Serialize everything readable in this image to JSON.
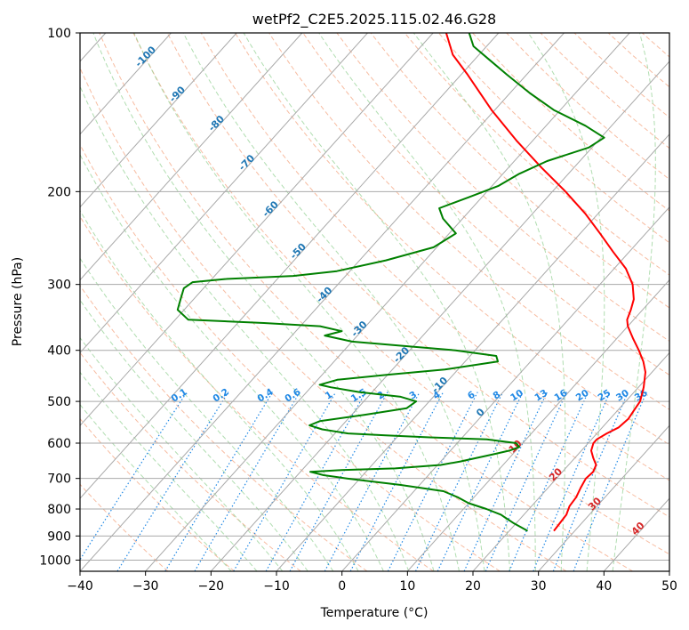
{
  "chart_data": {
    "type": "line",
    "subtype": "skew-t log-p",
    "title": "wetPf2_C2E5.2025.115.02.46.G28",
    "xlabel": "Temperature (°C)",
    "ylabel": "Pressure (hPa)",
    "xlim": [
      -40,
      50
    ],
    "ylim": [
      1050,
      100
    ],
    "y_scale": "log",
    "grid": true,
    "x_ticks": [
      "−40",
      "−30",
      "−20",
      "−10",
      "0",
      "10",
      "20",
      "30",
      "40",
      "50"
    ],
    "x_tick_values": [
      -40,
      -30,
      -20,
      -10,
      0,
      10,
      20,
      30,
      40,
      50
    ],
    "y_ticks": [
      "100",
      "200",
      "300",
      "400",
      "500",
      "600",
      "700",
      "800",
      "900",
      "1000"
    ],
    "y_tick_values": [
      100,
      200,
      300,
      400,
      500,
      600,
      700,
      800,
      900,
      1000
    ],
    "colors": {
      "temperature": "#ff0000",
      "dewpoint": "#008000",
      "dry_adiabats": "#f4a582",
      "moist_adiabats": "#8fcf8f",
      "mixing_ratio": "#1f88e5",
      "isotherm_labels_blue": "#1f77b4",
      "isotherm_labels_red": "#d62728",
      "grid": "#a9a9a9"
    },
    "isotherm_labels": [
      {
        "text": "-100",
        "temp": -100
      },
      {
        "text": "-90",
        "temp": -90
      },
      {
        "text": "-80",
        "temp": -80
      },
      {
        "text": "-70",
        "temp": -70
      },
      {
        "text": "-60",
        "temp": -60
      },
      {
        "text": "-50",
        "temp": -50
      },
      {
        "text": "-40",
        "temp": -40
      },
      {
        "text": "-30",
        "temp": -30
      },
      {
        "text": "-20",
        "temp": -20
      },
      {
        "text": "-10",
        "temp": -10
      },
      {
        "text": "0",
        "temp": 0
      },
      {
        "text": "10",
        "temp": 10
      },
      {
        "text": "20",
        "temp": 20
      },
      {
        "text": "30",
        "temp": 30
      },
      {
        "text": "40",
        "temp": 40
      }
    ],
    "mixing_ratio_labels": [
      "0.1",
      "0.2",
      "0.4",
      "0.6",
      "1",
      "1.5",
      "2",
      "3",
      "4",
      "6",
      "8",
      "10",
      "13",
      "16",
      "20",
      "25",
      "30",
      "36"
    ],
    "series": [
      {
        "role": "temperature",
        "points": [
          {
            "p": 880,
            "t": 26.8
          },
          {
            "p": 820,
            "t": 26.5
          },
          {
            "p": 790,
            "t": 25.8
          },
          {
            "p": 760,
            "t": 25.6
          },
          {
            "p": 730,
            "t": 25.0
          },
          {
            "p": 700,
            "t": 24.5
          },
          {
            "p": 680,
            "t": 24.7
          },
          {
            "p": 660,
            "t": 24.2
          },
          {
            "p": 640,
            "t": 22.8
          },
          {
            "p": 620,
            "t": 21.5
          },
          {
            "p": 600,
            "t": 20.8
          },
          {
            "p": 590,
            "t": 20.8
          },
          {
            "p": 575,
            "t": 21.5
          },
          {
            "p": 560,
            "t": 22.5
          },
          {
            "p": 540,
            "t": 22.8
          },
          {
            "p": 520,
            "t": 22.5
          },
          {
            "p": 500,
            "t": 22.2
          },
          {
            "p": 470,
            "t": 20.8
          },
          {
            "p": 440,
            "t": 19.0
          },
          {
            "p": 420,
            "t": 17.2
          },
          {
            "p": 400,
            "t": 15.0
          },
          {
            "p": 380,
            "t": 12.5
          },
          {
            "p": 360,
            "t": 10.0
          },
          {
            "p": 350,
            "t": 9.0
          },
          {
            "p": 335,
            "t": 8.2
          },
          {
            "p": 320,
            "t": 7.2
          },
          {
            "p": 300,
            "t": 5.0
          },
          {
            "p": 280,
            "t": 1.8
          },
          {
            "p": 260,
            "t": -2.5
          },
          {
            "p": 240,
            "t": -7.0
          },
          {
            "p": 220,
            "t": -12.0
          },
          {
            "p": 200,
            "t": -18.0
          },
          {
            "p": 180,
            "t": -25.0
          },
          {
            "p": 160,
            "t": -32.5
          },
          {
            "p": 140,
            "t": -40.5
          },
          {
            "p": 120,
            "t": -49.0
          },
          {
            "p": 110,
            "t": -54.0
          },
          {
            "p": 100,
            "t": -58.0
          }
        ]
      },
      {
        "role": "dewpoint",
        "points": [
          {
            "p": 880,
            "t": 22.8
          },
          {
            "p": 850,
            "t": 19.5
          },
          {
            "p": 830,
            "t": 17.5
          },
          {
            "p": 820,
            "t": 16.5
          },
          {
            "p": 800,
            "t": 13.5
          },
          {
            "p": 780,
            "t": 10.0
          },
          {
            "p": 760,
            "t": 7.5
          },
          {
            "p": 740,
            "t": 4.5
          },
          {
            "p": 720,
            "t": -3.0
          },
          {
            "p": 700,
            "t": -12.0
          },
          {
            "p": 690,
            "t": -16.0
          },
          {
            "p": 680,
            "t": -18.5
          },
          {
            "p": 675,
            "t": -14.0
          },
          {
            "p": 670,
            "t": -6.0
          },
          {
            "p": 660,
            "t": 0.5
          },
          {
            "p": 650,
            "t": 3.0
          },
          {
            "p": 640,
            "t": 5.0
          },
          {
            "p": 630,
            "t": 7.0
          },
          {
            "p": 620,
            "t": 9.0
          },
          {
            "p": 610,
            "t": 10.0
          },
          {
            "p": 600,
            "t": 9.0
          },
          {
            "p": 590,
            "t": 4.0
          },
          {
            "p": 585,
            "t": -5.0
          },
          {
            "p": 580,
            "t": -12.0
          },
          {
            "p": 575,
            "t": -18.0
          },
          {
            "p": 565,
            "t": -22.5
          },
          {
            "p": 555,
            "t": -25.0
          },
          {
            "p": 545,
            "t": -24.0
          },
          {
            "p": 530,
            "t": -18.0
          },
          {
            "p": 515,
            "t": -12.5
          },
          {
            "p": 500,
            "t": -12.0
          },
          {
            "p": 490,
            "t": -15.0
          },
          {
            "p": 480,
            "t": -22.0
          },
          {
            "p": 470,
            "t": -27.0
          },
          {
            "p": 465,
            "t": -29.0
          },
          {
            "p": 455,
            "t": -27.0
          },
          {
            "p": 445,
            "t": -20.0
          },
          {
            "p": 435,
            "t": -12.0
          },
          {
            "p": 420,
            "t": -5.0
          },
          {
            "p": 410,
            "t": -6.0
          },
          {
            "p": 400,
            "t": -13.0
          },
          {
            "p": 392,
            "t": -22.0
          },
          {
            "p": 385,
            "t": -30.0
          },
          {
            "p": 375,
            "t": -35.0
          },
          {
            "p": 368,
            "t": -33.0
          },
          {
            "p": 360,
            "t": -37.0
          },
          {
            "p": 355,
            "t": -46.0
          },
          {
            "p": 350,
            "t": -58.0
          },
          {
            "p": 335,
            "t": -61.0
          },
          {
            "p": 320,
            "t": -62.0
          },
          {
            "p": 305,
            "t": -63.0
          },
          {
            "p": 297,
            "t": -62.5
          },
          {
            "p": 293,
            "t": -58.0
          },
          {
            "p": 289,
            "t": -48.0
          },
          {
            "p": 283,
            "t": -42.0
          },
          {
            "p": 270,
            "t": -36.0
          },
          {
            "p": 255,
            "t": -30.5
          },
          {
            "p": 240,
            "t": -29.0
          },
          {
            "p": 225,
            "t": -33.0
          },
          {
            "p": 215,
            "t": -35.0
          },
          {
            "p": 205,
            "t": -32.0
          },
          {
            "p": 195,
            "t": -29.0
          },
          {
            "p": 185,
            "t": -27.5
          },
          {
            "p": 175,
            "t": -25.0
          },
          {
            "p": 165,
            "t": -20.5
          },
          {
            "p": 158,
            "t": -19.5
          },
          {
            "p": 150,
            "t": -24.0
          },
          {
            "p": 140,
            "t": -31.0
          },
          {
            "p": 130,
            "t": -37.0
          },
          {
            "p": 120,
            "t": -43.0
          },
          {
            "p": 112,
            "t": -48.0
          },
          {
            "p": 106,
            "t": -52.0
          },
          {
            "p": 100,
            "t": -54.5
          }
        ]
      }
    ]
  }
}
